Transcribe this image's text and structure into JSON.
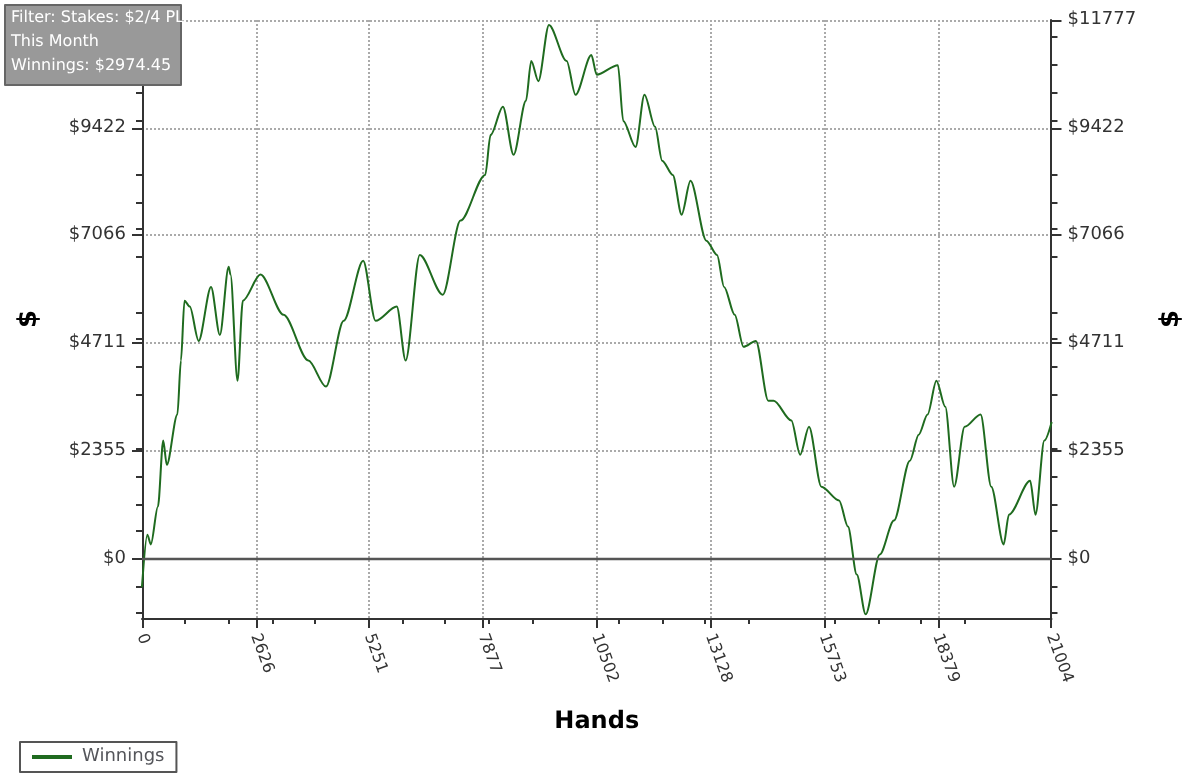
{
  "chart_data": {
    "type": "line",
    "xlabel": "Hands",
    "ylabel": "$",
    "y2label": "$",
    "annotations": [
      "Filter: Stakes: $2/4 PL",
      "This Month",
      "Winnings: $2974.45"
    ],
    "xlim": [
      0,
      21004
    ],
    "xticks": [
      0,
      2626,
      5251,
      7877,
      10502,
      13128,
      15753,
      18379,
      21004
    ],
    "ylim": [
      -1300,
      11777
    ],
    "yticks": [
      {
        "value": 0,
        "label": "$0"
      },
      {
        "value": 2355,
        "label": "$2355"
      },
      {
        "value": 4711,
        "label": "$4711"
      },
      {
        "value": 7066,
        "label": "$7066"
      },
      {
        "value": 9422,
        "label": "$9422"
      },
      {
        "value": 11777,
        "label": null
      }
    ],
    "y2lim": [
      -1300,
      11777
    ],
    "y2ticks": [
      {
        "value": 0,
        "label": "$0"
      },
      {
        "value": 2355,
        "label": "$2355"
      },
      {
        "value": 4711,
        "label": "$4711"
      },
      {
        "value": 7066,
        "label": "$7066"
      },
      {
        "value": 9422,
        "label": "$9422"
      },
      {
        "value": 11777,
        "label": "$11777"
      }
    ],
    "grid": true,
    "legend": "bottom left",
    "marker": "none",
    "line_style": "solid",
    "ref_lines": [
      {
        "axis": "y",
        "value": 0,
        "color": "#555555"
      }
    ],
    "series": [
      {
        "name": "Winnings",
        "color": "#1f6b1f",
        "x": [
          0,
          123,
          204,
          368,
          490,
          572,
          817,
          899,
          981,
          1103,
          1308,
          1594,
          1798,
          2002,
          2043,
          2206,
          2329,
          2737,
          3269,
          3841,
          4249,
          4658,
          5108,
          5394,
          5884,
          6088,
          6415,
          6946,
          7355,
          7927,
          8049,
          8335,
          8581,
          8867,
          8989,
          9153,
          9398,
          9807,
          10011,
          10378,
          10501,
          10991,
          11114,
          11399,
          11604,
          11849,
          12013,
          12258,
          12462,
          12667,
          13034,
          13280,
          13443,
          13688,
          13892,
          14178,
          14464,
          14587,
          14996,
          15200,
          15404,
          15690,
          16099,
          16303,
          16507,
          16712,
          17039,
          17366,
          17733,
          17938,
          18142,
          18346,
          18551,
          18755,
          18999,
          19367,
          19613,
          19899,
          20021,
          20512,
          20634,
          20839,
          21004
        ],
        "values": [
          -610,
          520,
          310,
          1140,
          2580,
          2050,
          3150,
          4330,
          5640,
          5510,
          4760,
          5940,
          4890,
          6380,
          6210,
          3890,
          5640,
          6210,
          5330,
          4330,
          3760,
          5200,
          6510,
          5200,
          5510,
          4330,
          6640,
          5770,
          7390,
          8390,
          9260,
          9880,
          8830,
          10010,
          10880,
          10440,
          11670,
          10880,
          10140,
          11010,
          10580,
          10790,
          9570,
          9000,
          10140,
          9440,
          8700,
          8390,
          7520,
          8260,
          6950,
          6640,
          5940,
          5330,
          4630,
          4760,
          3450,
          3450,
          3020,
          2270,
          2880,
          1570,
          1270,
          700,
          -350,
          -1220,
          90,
          830,
          2140,
          2710,
          3150,
          3890,
          3320,
          1570,
          2880,
          3150,
          1570,
          310,
          960,
          1700,
          960,
          2580,
          2970
        ]
      }
    ]
  }
}
